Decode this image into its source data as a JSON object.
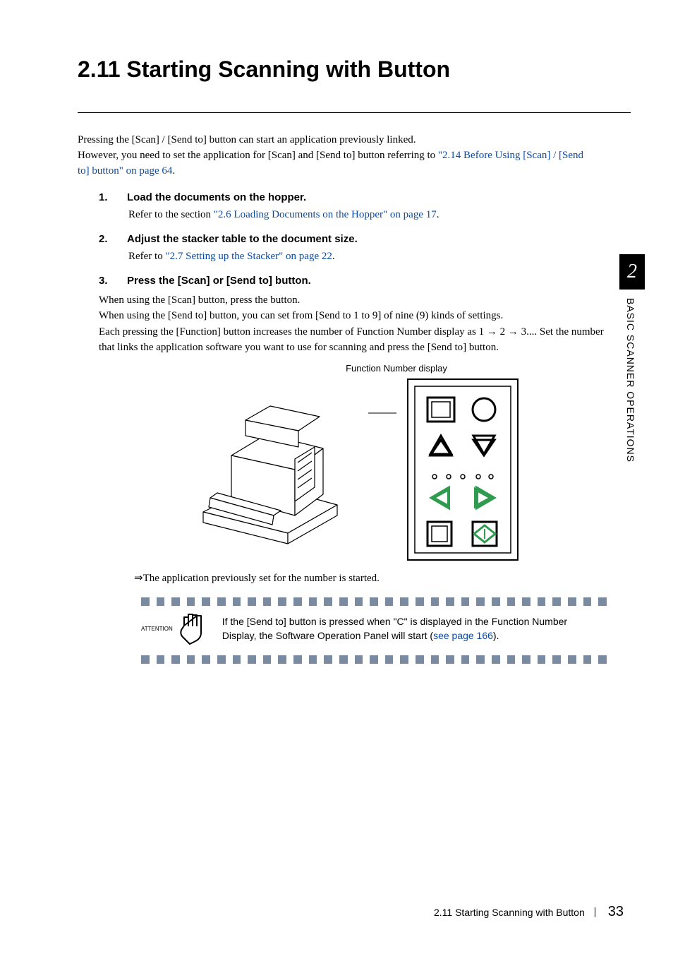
{
  "chapter": {
    "number": "2",
    "sidebar_label": "BASIC SCANNER OPERATIONS"
  },
  "heading": "2.11 Starting Scanning with Button",
  "intro": {
    "line1": "Pressing the [Scan] / [Send to] button can start an application previously linked.",
    "line2_pre": "However, you need to set the application for [Scan] and [Send to] button referring to ",
    "line2_link": "\"2.14 Before Using [Scan] / [Send to] button\" on page 64",
    "line2_post": "."
  },
  "steps": [
    {
      "num": "1.",
      "title": "Load the documents on the hopper.",
      "body_pre": "Refer to the section ",
      "body_link": "\"2.6 Loading Documents on the Hopper\" on page 17",
      "body_post": "."
    },
    {
      "num": "2.",
      "title": "Adjust the stacker table to the document size.",
      "body_pre": "Refer to ",
      "body_link": "\"2.7 Setting up the Stacker\" on page 22",
      "body_post": "."
    },
    {
      "num": "3.",
      "title": "Press the [Scan] or [Send to] button.",
      "para1": "When using the [Scan] button, press the button.",
      "para2": "When using the [Send to] button, you can set from [Send to 1 to 9] of nine (9) kinds of settings.",
      "para3": "Each pressing the [Function] button increases the number of Function Number display as 1 → 2 → 3.... Set the number that links the application software you want to use for scanning and press the [Send to] button."
    }
  ],
  "figure_caption": "Function Number display",
  "result_text": "⇒The application previously set for the number is started.",
  "attention": {
    "label": "ATTENTION",
    "text_pre": "If the [Send to] button is pressed when \"C\" is displayed in the Function Number Display, the Software Operation Panel will start (",
    "text_link": "see page 166",
    "text_post": ")."
  },
  "footer": {
    "title": "2.11 Starting Scanning with Button",
    "page": "33"
  },
  "colors": {
    "link": "#0b4aa2",
    "dash": "#7a8aa0",
    "panel_green": "#2e9b4f"
  },
  "dash_count": 31
}
